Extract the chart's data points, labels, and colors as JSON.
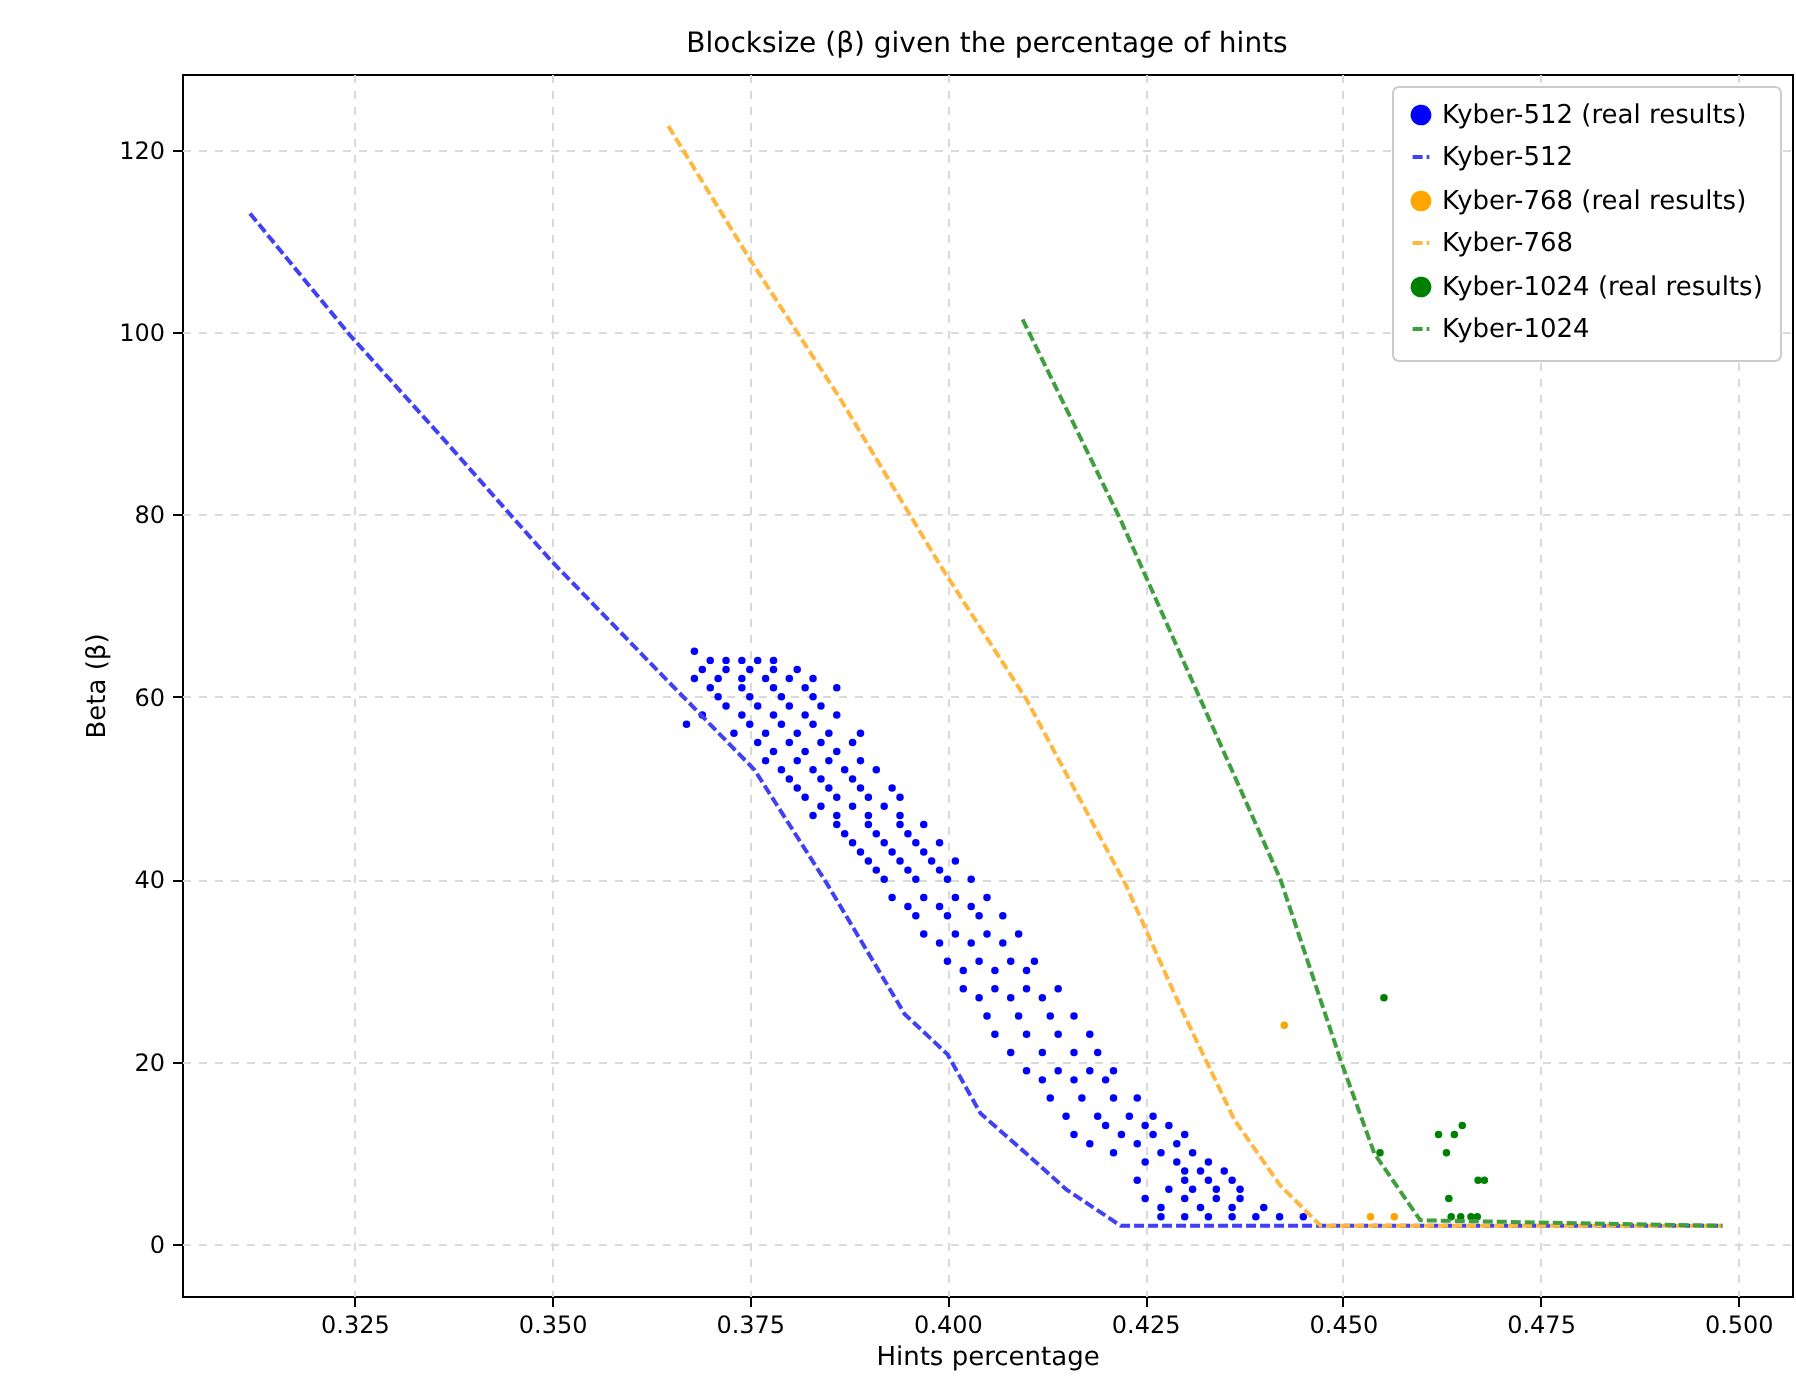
{
  "chart_data": {
    "type": "scatter",
    "title": "Blocksize (β) given the percentage of hints",
    "xlabel": "Hints percentage",
    "ylabel": "Beta (β)",
    "xlim": [
      0.3032,
      0.5068
    ],
    "ylim": [
      -5.7,
      128.3
    ],
    "xticks": [
      0.325,
      {
        "value": 0.35,
        "label": "0.350"
      },
      0.375,
      {
        "value": 0.4,
        "label": "0.400"
      },
      0.425,
      {
        "value": 0.45,
        "label": "0.450"
      },
      0.475,
      {
        "value": 0.5,
        "label": "0.500"
      }
    ],
    "yticks": [
      0,
      20,
      40,
      60,
      80,
      100,
      120
    ],
    "grid": true,
    "legend": "top right",
    "series": [
      {
        "name": "Kyber-512 (real results)",
        "marker": "circle",
        "color": "#0000ff",
        "x": [
          0.368,
          0.37,
          0.372,
          0.374,
          0.376,
          0.378,
          0.369,
          0.372,
          0.375,
          0.378,
          0.381,
          0.368,
          0.371,
          0.374,
          0.377,
          0.38,
          0.383,
          0.37,
          0.374,
          0.378,
          0.382,
          0.386,
          0.371,
          0.375,
          0.379,
          0.383,
          0.372,
          0.376,
          0.38,
          0.384,
          0.369,
          0.374,
          0.378,
          0.382,
          0.386,
          0.367,
          0.375,
          0.379,
          0.383,
          0.373,
          0.377,
          0.381,
          0.385,
          0.389,
          0.376,
          0.38,
          0.384,
          0.388,
          0.378,
          0.382,
          0.386,
          0.377,
          0.381,
          0.385,
          0.389,
          0.379,
          0.383,
          0.387,
          0.391,
          0.38,
          0.384,
          0.388,
          0.381,
          0.385,
          0.389,
          0.393,
          0.382,
          0.386,
          0.39,
          0.394,
          0.384,
          0.388,
          0.392,
          0.383,
          0.386,
          0.39,
          0.394,
          0.386,
          0.39,
          0.394,
          0.397,
          0.387,
          0.391,
          0.395,
          0.388,
          0.392,
          0.396,
          0.399,
          0.389,
          0.393,
          0.397,
          0.39,
          0.394,
          0.398,
          0.401,
          0.391,
          0.395,
          0.399,
          0.392,
          0.396,
          0.4,
          0.403,
          0.393,
          0.397,
          0.401,
          0.405,
          0.395,
          0.399,
          0.403,
          0.396,
          0.4,
          0.404,
          0.407,
          0.397,
          0.401,
          0.405,
          0.409,
          0.399,
          0.403,
          0.407,
          0.4,
          0.404,
          0.408,
          0.411,
          0.402,
          0.406,
          0.41,
          0.402,
          0.406,
          0.41,
          0.414,
          0.404,
          0.408,
          0.412,
          0.405,
          0.409,
          0.413,
          0.416,
          0.406,
          0.41,
          0.414,
          0.418,
          0.408,
          0.412,
          0.416,
          0.419,
          0.41,
          0.414,
          0.418,
          0.421,
          0.412,
          0.416,
          0.42,
          0.413,
          0.417,
          0.421,
          0.424,
          0.415,
          0.419,
          0.423,
          0.426,
          0.42,
          0.425,
          0.428,
          0.416,
          0.422,
          0.426,
          0.43,
          0.418,
          0.424,
          0.429,
          0.421,
          0.427,
          0.431,
          0.425,
          0.429,
          0.433,
          0.43,
          0.432,
          0.435,
          0.424,
          0.43,
          0.433,
          0.436,
          0.428,
          0.431,
          0.434,
          0.437,
          0.425,
          0.43,
          0.434,
          0.437,
          0.427,
          0.432,
          0.436,
          0.44,
          0.427,
          0.43,
          0.433,
          0.436,
          0.439,
          0.442,
          0.445
        ],
        "values": [
          65,
          64,
          64,
          64,
          64,
          64,
          63,
          63,
          63,
          63,
          63,
          62,
          62,
          62,
          62,
          62,
          62,
          61,
          61,
          61,
          61,
          61,
          60,
          60,
          60,
          60,
          59,
          59,
          59,
          59,
          58,
          58,
          58,
          58,
          58,
          57,
          57,
          57,
          57,
          56,
          56,
          56,
          56,
          56,
          55,
          55,
          55,
          55,
          54,
          54,
          54,
          53,
          53,
          53,
          53,
          52,
          52,
          52,
          52,
          51,
          51,
          51,
          50,
          50,
          50,
          50,
          49,
          49,
          49,
          49,
          48,
          48,
          48,
          47,
          47,
          47,
          47,
          46,
          46,
          46,
          46,
          45,
          45,
          45,
          44,
          44,
          44,
          44,
          43,
          43,
          43,
          42,
          42,
          42,
          42,
          41,
          41,
          41,
          40,
          40,
          40,
          40,
          38,
          38,
          38,
          38,
          37,
          37,
          37,
          36,
          36,
          36,
          36,
          34,
          34,
          34,
          34,
          33,
          33,
          33,
          31,
          31,
          31,
          31,
          30,
          30,
          30,
          28,
          28,
          28,
          28,
          27,
          27,
          27,
          25,
          25,
          25,
          25,
          23,
          23,
          23,
          23,
          21,
          21,
          21,
          21,
          19,
          19,
          19,
          19,
          18,
          18,
          18,
          16,
          16,
          16,
          16,
          14,
          14,
          14,
          14,
          13,
          13,
          13,
          12,
          12,
          12,
          12,
          11,
          11,
          11,
          10,
          10,
          10,
          9,
          9,
          9,
          8,
          8,
          8,
          7,
          7,
          7,
          7,
          6,
          6,
          6,
          6,
          5,
          5,
          5,
          5,
          4,
          4,
          4,
          4,
          3,
          3,
          3,
          3,
          3,
          3,
          3
        ]
      },
      {
        "name": "Kyber-512",
        "type": "line",
        "line_style": "dashed",
        "color": "#4040f5",
        "x": [
          0.3118,
          0.3245,
          0.335,
          0.3498,
          0.364,
          0.3756,
          0.3847,
          0.3946,
          0.4,
          0.4042,
          0.41,
          0.415,
          0.4219,
          0.498
        ],
        "values": [
          113,
          99.6,
          89.5,
          75,
          62.3,
          52,
          39.6,
          25.2,
          20.8,
          14.3,
          9.9,
          6,
          2,
          2
        ]
      },
      {
        "name": "Kyber-768 (real results)",
        "marker": "circle",
        "color": "#ffa500",
        "x": [
          0.4426,
          0.4535,
          0.4565
        ],
        "values": [
          24,
          3,
          3
        ]
      },
      {
        "name": "Kyber-768",
        "type": "line",
        "line_style": "dashed",
        "color": "#ffb740",
        "x": [
          0.3647,
          0.375,
          0.3865,
          0.3991,
          0.41,
          0.4226,
          0.4294,
          0.4363,
          0.4421,
          0.4472,
          0.498
        ],
        "values": [
          122.6,
          108,
          92.6,
          74.4,
          59.7,
          39.3,
          26.1,
          13.6,
          6.4,
          2,
          2
        ]
      },
      {
        "name": "Kyber-1024 (real results)",
        "marker": "circle",
        "color": "#008000",
        "x": [
          0.4552,
          0.4547,
          0.4621,
          0.4641,
          0.4651,
          0.4631,
          0.4671,
          0.4679,
          0.4634,
          0.4637,
          0.4649,
          0.4662,
          0.467
        ],
        "values": [
          27,
          10,
          12,
          12,
          13,
          10,
          7,
          7,
          5,
          3,
          3,
          3,
          3
        ]
      },
      {
        "name": "Kyber-1024",
        "type": "line",
        "line_style": "dashed",
        "color": "#3f9f3f",
        "x": [
          0.4095,
          0.4219,
          0.432,
          0.4421,
          0.4497,
          0.454,
          0.4598,
          0.498
        ],
        "values": [
          101.4,
          79.4,
          59.7,
          40,
          20.2,
          9.9,
          2.6,
          2
        ]
      }
    ]
  }
}
